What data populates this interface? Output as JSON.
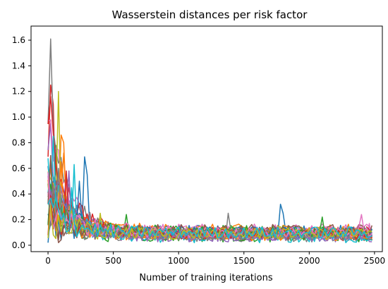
{
  "chart_data": {
    "type": "line",
    "title": "Wasserstein distances per risk factor",
    "xlabel": "Number of training iterations",
    "ylabel": "",
    "xlim": [
      -130,
      2560
    ],
    "ylim": [
      -0.05,
      1.71
    ],
    "xticks": [
      0,
      500,
      1000,
      1500,
      2000,
      2500
    ],
    "yticks": [
      0.0,
      0.2,
      0.4,
      0.6,
      0.8,
      1.0,
      1.2,
      1.4,
      1.6
    ],
    "xtick_labels": [
      "0",
      "500",
      "1000",
      "1500",
      "2000",
      "2500"
    ],
    "ytick_labels": [
      "0.0",
      "0.2",
      "0.4",
      "0.6",
      "0.8",
      "1.0",
      "1.2",
      "1.4",
      "1.6"
    ],
    "grid": false,
    "x_step": 20,
    "x_max": 2480,
    "series_colors": [
      "#1f77b4",
      "#ff7f0e",
      "#2ca02c",
      "#d62728",
      "#9467bd",
      "#8c564b",
      "#e377c2",
      "#7f7f7f",
      "#bcbd22",
      "#17becf"
    ],
    "series_count": 30,
    "series": [
      {
        "peaks": [
          [
            280,
            0.69
          ],
          [
            300,
            0.55
          ]
        ],
        "start": 0.55,
        "tail": 0.1
      },
      {
        "peaks": [
          [
            100,
            0.86
          ],
          [
            120,
            0.8
          ]
        ],
        "start": 0.45,
        "tail": 0.09
      },
      {
        "peaks": [
          [
            60,
            0.78
          ],
          [
            440,
            0.18
          ]
        ],
        "start": 0.35,
        "tail": 0.11
      },
      {
        "peaks": [
          [
            20,
            1.25
          ],
          [
            40,
            1.1
          ]
        ],
        "start": 0.6,
        "tail": 0.08
      },
      {
        "peaks": [
          [
            20,
            0.95
          ],
          [
            140,
            0.55
          ]
        ],
        "start": 0.7,
        "tail": 0.09
      },
      {
        "peaks": [
          [
            60,
            0.62
          ]
        ],
        "start": 0.3,
        "tail": 0.08
      },
      {
        "peaks": [
          [
            0,
            0.97
          ],
          [
            2460,
            0.17
          ]
        ],
        "start": 0.97,
        "tail": 0.09
      },
      {
        "peaks": [
          [
            20,
            1.61
          ],
          [
            40,
            0.9
          ]
        ],
        "start": 1.09,
        "tail": 0.07
      },
      {
        "peaks": [
          [
            80,
            1.2
          ],
          [
            400,
            0.2
          ]
        ],
        "start": 0.4,
        "tail": 0.08
      },
      {
        "peaks": [
          [
            200,
            0.63
          ]
        ],
        "start": 0.5,
        "tail": 0.1
      },
      {
        "peaks": [
          [
            1780,
            0.32
          ],
          [
            1800,
            0.25
          ]
        ],
        "start": 0.4,
        "tail": 0.11
      },
      {
        "peaks": [
          [
            120,
            0.72
          ]
        ],
        "start": 0.5,
        "tail": 0.12
      },
      {
        "peaks": [
          [
            600,
            0.24
          ]
        ],
        "start": 0.3,
        "tail": 0.07
      },
      {
        "peaks": [
          [
            20,
            1.16
          ]
        ],
        "start": 0.9,
        "tail": 0.1
      },
      {
        "peaks": [
          [
            160,
            0.58
          ]
        ],
        "start": 0.6,
        "tail": 0.07
      },
      {
        "peaks": [
          [
            60,
            0.5
          ]
        ],
        "start": 0.25,
        "tail": 0.09
      },
      {
        "peaks": [
          [
            2350,
            0.2
          ]
        ],
        "start": 0.4,
        "tail": 0.12
      },
      {
        "peaks": [
          [
            1380,
            0.25
          ]
        ],
        "start": 0.3,
        "tail": 0.08
      },
      {
        "peaks": [
          [
            400,
            0.25
          ]
        ],
        "start": 0.45,
        "tail": 0.1
      },
      {
        "peaks": [
          [
            40,
            0.85
          ]
        ],
        "start": 0.5,
        "tail": 0.06
      },
      {
        "peaks": [
          [
            240,
            0.5
          ]
        ],
        "start": 0.2,
        "tail": 0.1
      },
      {
        "peaks": [
          [
            100,
            0.65
          ]
        ],
        "start": 0.35,
        "tail": 0.08
      },
      {
        "peaks": [
          [
            2100,
            0.22
          ]
        ],
        "start": 0.3,
        "tail": 0.11
      },
      {
        "peaks": [
          [
            140,
            0.58
          ]
        ],
        "start": 0.25,
        "tail": 0.09
      },
      {
        "peaks": [
          [
            1550,
            0.23
          ]
        ],
        "start": 0.55,
        "tail": 0.07
      },
      {
        "peaks": [
          [
            20,
            0.7
          ]
        ],
        "start": 0.15,
        "tail": 0.12
      },
      {
        "peaks": [
          [
            2400,
            0.24
          ]
        ],
        "start": 0.35,
        "tail": 0.1
      },
      {
        "peaks": [
          [
            80,
            0.6
          ]
        ],
        "start": 0.45,
        "tail": 0.08
      },
      {
        "peaks": [
          [
            1050,
            0.2
          ]
        ],
        "start": 0.25,
        "tail": 0.09
      },
      {
        "peaks": [
          [
            180,
            0.45
          ]
        ],
        "start": 0.3,
        "tail": 0.1
      }
    ]
  }
}
